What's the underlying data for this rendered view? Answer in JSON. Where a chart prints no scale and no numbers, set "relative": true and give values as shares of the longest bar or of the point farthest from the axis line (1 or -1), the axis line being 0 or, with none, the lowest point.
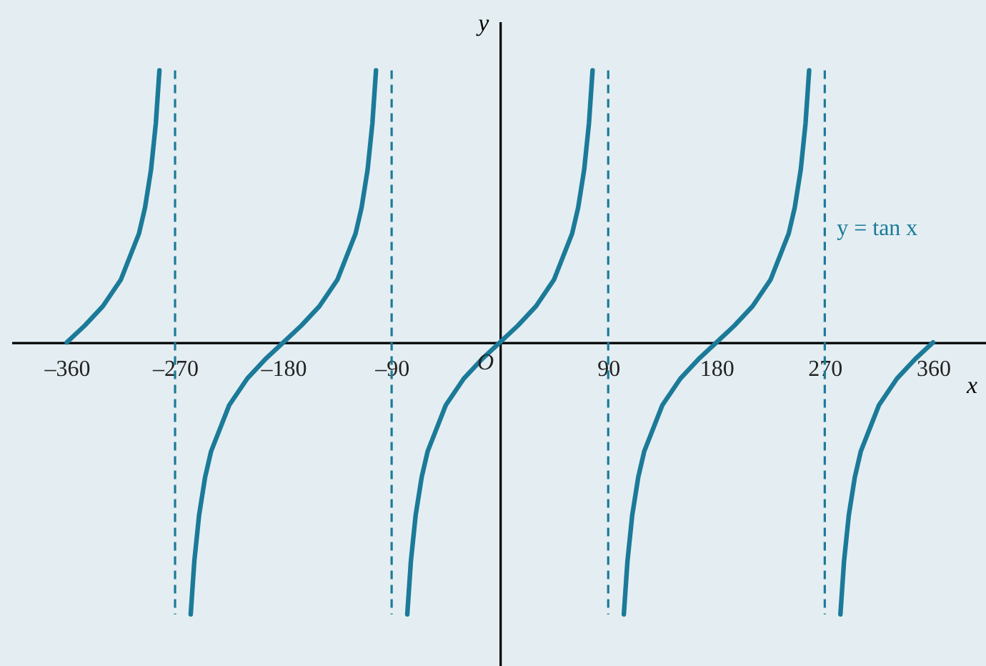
{
  "chart_data": {
    "type": "line",
    "relative": true,
    "xlabel": "x",
    "ylabel": "y",
    "xlim": [
      -406,
      404
    ],
    "xticks": [
      {
        "value": -360,
        "label": "–360"
      },
      {
        "value": -270,
        "label": "–270"
      },
      {
        "value": -180,
        "label": "–180"
      },
      {
        "value": -90,
        "label": "–90"
      },
      90,
      180,
      270,
      360
    ],
    "series": [
      {
        "name": "y = tan x",
        "color": "#1c7a99",
        "x": [
          -360,
          -345,
          -330,
          -315,
          -300,
          -295,
          -290,
          -286,
          -283,
          -270,
          -257,
          -254,
          -250,
          -245,
          -240,
          -225,
          -210,
          -195,
          -180,
          -165,
          -150,
          -135,
          -120,
          -115,
          -110,
          -106,
          -103,
          -90,
          -77,
          -74,
          -70,
          -65,
          -60,
          -45,
          -30,
          -15,
          0,
          15,
          30,
          45,
          60,
          65,
          70,
          74,
          77,
          90,
          103,
          106,
          110,
          115,
          120,
          135,
          150,
          165,
          180,
          195,
          210,
          225,
          240,
          245,
          250,
          254,
          257,
          270,
          283,
          286,
          290,
          295,
          300,
          315,
          330,
          345,
          360
        ],
        "values": [
          0,
          0.062,
          0.133,
          0.231,
          0.4,
          0.495,
          0.634,
          0.805,
          1,
          null,
          -1,
          -0.805,
          -0.634,
          -0.495,
          -0.4,
          -0.231,
          -0.133,
          -0.062,
          0,
          0.062,
          0.133,
          0.231,
          0.4,
          0.495,
          0.634,
          0.805,
          1,
          null,
          -1,
          -0.805,
          -0.634,
          -0.495,
          -0.4,
          -0.231,
          -0.133,
          -0.062,
          0,
          0.062,
          0.133,
          0.231,
          0.4,
          0.495,
          0.634,
          0.805,
          1,
          null,
          -1,
          -0.805,
          -0.634,
          -0.495,
          -0.4,
          -0.231,
          -0.133,
          -0.062,
          0,
          0.062,
          0.133,
          0.231,
          0.4,
          0.495,
          0.634,
          0.805,
          1,
          null,
          -1,
          -0.805,
          -0.634,
          -0.495,
          -0.4,
          -0.231,
          -0.133,
          -0.062,
          0
        ]
      }
    ],
    "ref_lines": [
      {
        "axis": "x",
        "value": -270,
        "color": "#1c7a99",
        "line_style": "dashed"
      },
      {
        "axis": "x",
        "value": -90,
        "color": "#1c7a99",
        "line_style": "dashed"
      },
      {
        "axis": "x",
        "value": 90,
        "color": "#1c7a99",
        "line_style": "dashed"
      },
      {
        "axis": "x",
        "value": 270,
        "color": "#1c7a99",
        "line_style": "dashed"
      }
    ],
    "annotations": [
      {
        "text": "O",
        "x": 0,
        "y": 0
      }
    ]
  }
}
